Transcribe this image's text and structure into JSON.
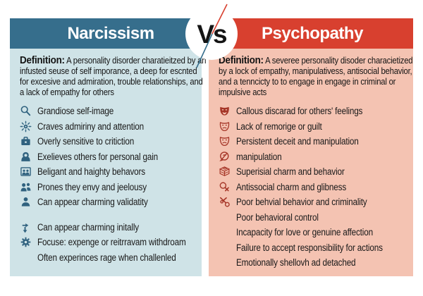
{
  "header": {
    "left_title": "Narcissism",
    "right_title": "Psychopathy",
    "vs_label": "Vs"
  },
  "colors": {
    "left_header_bg": "#366e8c",
    "right_header_bg": "#d8402f",
    "left_panel_bg": "#cfe3e7",
    "right_panel_bg": "#f4c3b2",
    "left_icon": "#30627f",
    "right_icon": "#a53527",
    "text": "#1b1b1b",
    "vs_text": "#141414"
  },
  "left": {
    "definition_label": "Definition:",
    "definition_text": "A personality disorder charatieitzed by an infusted seuse of self imporance, a deep for escnted for excesive and admiration, trouble relationships, and a lack of empathy for others",
    "items": [
      {
        "icon": "magnifier-icon",
        "text": "Grandiose self-image"
      },
      {
        "icon": "sun-rays-icon",
        "text": "Craves admiriny and attention"
      },
      {
        "icon": "briefcase-icon",
        "text": "Overly sensitive to critiction"
      },
      {
        "icon": "person-icon",
        "text": "Exelieves others for personal gain"
      },
      {
        "icon": "people-frame-icon",
        "text": "Beligant and haighty behavors"
      },
      {
        "icon": "people-icon",
        "text": "Prones they envy and jeelousy"
      },
      {
        "icon": "person-bust-icon",
        "text": "Can appear charming validatity"
      },
      {
        "icon": "puzzle-arrows-icon",
        "text": "Can appear charming initally",
        "gap_before": true
      },
      {
        "icon": "gear-icon",
        "text": "Focuse: expenge or reitrravam withdroam"
      },
      {
        "icon": null,
        "text": "Often experinces rage when challenled"
      }
    ]
  },
  "right": {
    "definition_label": "Definition:",
    "definition_text": "A severee personality disoder characietized by a lock of empathy, manipulativess, antisocial behavior, and a tenncicty to to engage in engage in criminal or impulsive acts",
    "items": [
      {
        "icon": "mask-filled-icon",
        "text": "Callous discarad for others' feelings"
      },
      {
        "icon": "mask-outline-icon",
        "text": "Lack of remorige or guilt"
      },
      {
        "icon": "mask-outline-icon",
        "text": "Persistent deceit and manipulation"
      },
      {
        "icon": "no-sign-icon",
        "text": "manipulation"
      },
      {
        "icon": "basket-icon",
        "text": "Superisial charm and behavior"
      },
      {
        "icon": "magnifier-x-icon",
        "text": "Antissocial charm and glibness"
      },
      {
        "icon": "scissors-ring-icon",
        "text": "Poor behvial behavior and criminality"
      },
      {
        "icon": null,
        "text": "Poor behavioral control"
      },
      {
        "icon": null,
        "text": "Incapacity for love or genuine affection"
      },
      {
        "icon": null,
        "text": "Failure to accept responsibility for actions"
      },
      {
        "icon": null,
        "text": "Emotionally shellovh ad detached"
      }
    ]
  }
}
